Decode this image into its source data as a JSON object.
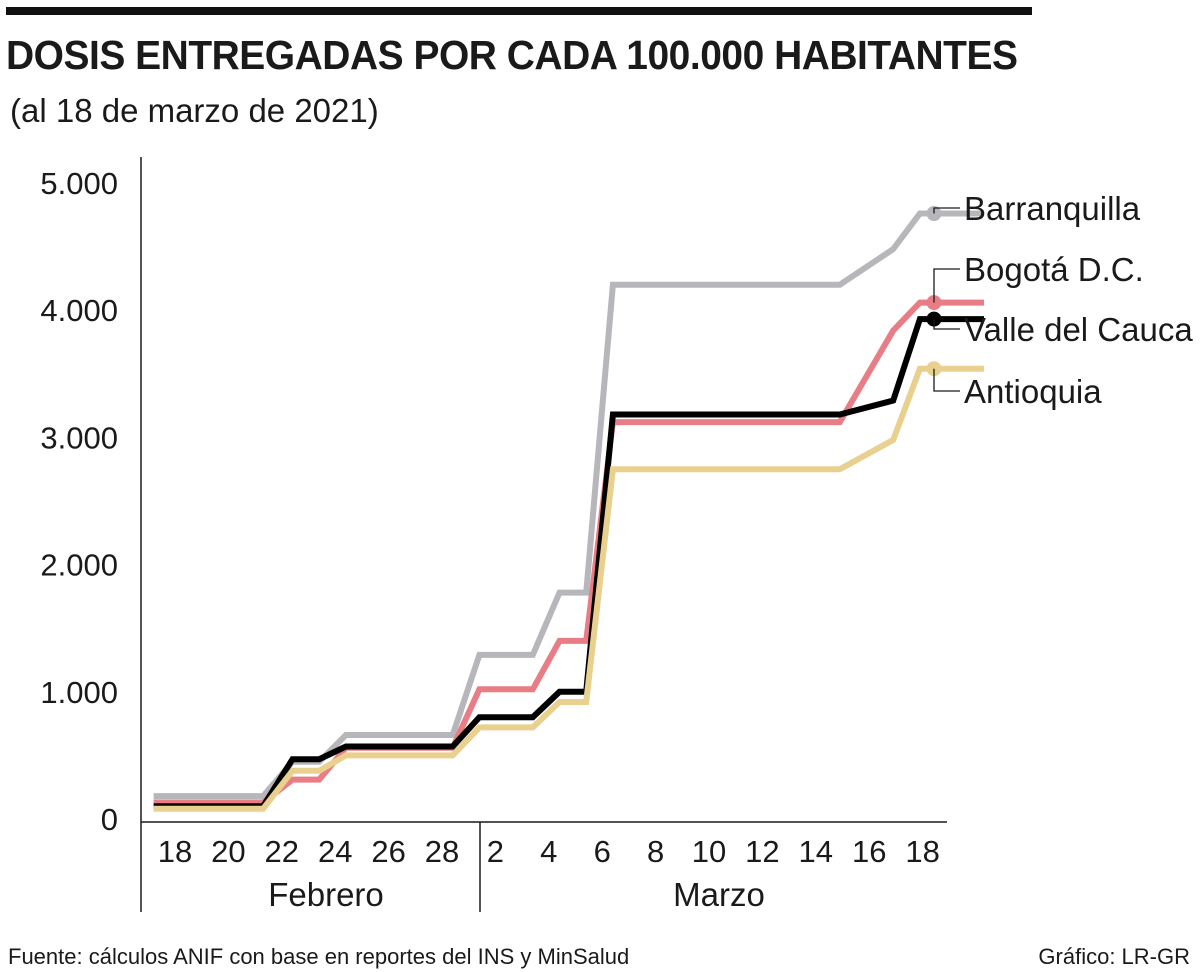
{
  "header": {
    "title": "DOSIS ENTREGADAS POR CADA 100.000 HABITANTES",
    "subtitle": "(al 18 de marzo de 2021)"
  },
  "footer": {
    "source": "Fuente: cálculos ANIF con base en reportes del INS y MinSalud",
    "credit": "Gráfico: LR-GR"
  },
  "chart_data": {
    "type": "line",
    "title": "DOSIS ENTREGADAS POR CADA 100.000 HABITANTES",
    "subtitle": "(al 18 de marzo de 2021)",
    "xlabel": "",
    "ylabel": "",
    "ylim": [
      0,
      5000
    ],
    "y_ticks": [
      0,
      1000,
      2000,
      3000,
      4000,
      5000
    ],
    "y_tick_labels": [
      "0",
      "1.000",
      "2.000",
      "3.000",
      "4.000",
      "5.000"
    ],
    "x_tick_labels": [
      {
        "label": "18",
        "day": 0
      },
      {
        "label": "20",
        "day": 2
      },
      {
        "label": "22",
        "day": 4
      },
      {
        "label": "24",
        "day": 6
      },
      {
        "label": "26",
        "day": 8
      },
      {
        "label": "28",
        "day": 10
      },
      {
        "label": "2",
        "day": 12
      },
      {
        "label": "4",
        "day": 14
      },
      {
        "label": "6",
        "day": 16
      },
      {
        "label": "8",
        "day": 18
      },
      {
        "label": "10",
        "day": 20
      },
      {
        "label": "12",
        "day": 22
      },
      {
        "label": "14",
        "day": 24
      },
      {
        "label": "16",
        "day": 26
      },
      {
        "label": "18",
        "day": 28
      }
    ],
    "month_labels": [
      {
        "label": "Febrero",
        "start_day": -0.6,
        "end_day": 11.1
      },
      {
        "label": "Marzo",
        "start_day": 11.1,
        "end_day": 28.5
      }
    ],
    "x_day_range": [
      -0.6,
      29.0
    ],
    "series": [
      {
        "name": "Barranquilla",
        "color": "#b7b6bb",
        "points": [
          [
            -0.8,
            180
          ],
          [
            3.3,
            180
          ],
          [
            4.4,
            450
          ],
          [
            5.4,
            450
          ],
          [
            6.4,
            660
          ],
          [
            10.4,
            660
          ],
          [
            11.4,
            1290
          ],
          [
            13.4,
            1290
          ],
          [
            14.4,
            1780
          ],
          [
            15.4,
            1780
          ],
          [
            16.4,
            4200
          ],
          [
            24.9,
            4200
          ],
          [
            26.9,
            4480
          ],
          [
            27.9,
            4760
          ],
          [
            30.3,
            4760
          ]
        ]
      },
      {
        "name": "Bogotá D.C.",
        "color": "#e87d85",
        "points": [
          [
            -0.8,
            130
          ],
          [
            3.3,
            130
          ],
          [
            4.4,
            310
          ],
          [
            5.4,
            310
          ],
          [
            6.4,
            560
          ],
          [
            10.4,
            560
          ],
          [
            11.4,
            1020
          ],
          [
            13.4,
            1020
          ],
          [
            14.4,
            1400
          ],
          [
            15.4,
            1400
          ],
          [
            16.4,
            3120
          ],
          [
            24.9,
            3120
          ],
          [
            26.9,
            3840
          ],
          [
            27.9,
            4060
          ],
          [
            30.3,
            4060
          ]
        ]
      },
      {
        "name": "Valle del Cauca",
        "color": "#000000",
        "points": [
          [
            -0.8,
            100
          ],
          [
            3.3,
            100
          ],
          [
            4.4,
            470
          ],
          [
            5.4,
            470
          ],
          [
            6.4,
            570
          ],
          [
            10.4,
            570
          ],
          [
            11.4,
            800
          ],
          [
            13.4,
            800
          ],
          [
            14.4,
            1000
          ],
          [
            15.4,
            1000
          ],
          [
            16.4,
            3180
          ],
          [
            24.9,
            3180
          ],
          [
            26.9,
            3290
          ],
          [
            27.9,
            3930
          ],
          [
            30.3,
            3930
          ]
        ]
      },
      {
        "name": "Antioquia",
        "color": "#ead08f",
        "points": [
          [
            -0.8,
            80
          ],
          [
            3.3,
            80
          ],
          [
            4.4,
            380
          ],
          [
            5.4,
            380
          ],
          [
            6.4,
            500
          ],
          [
            10.4,
            500
          ],
          [
            11.4,
            720
          ],
          [
            13.4,
            720
          ],
          [
            14.4,
            920
          ],
          [
            15.4,
            920
          ],
          [
            16.4,
            2750
          ],
          [
            24.9,
            2750
          ],
          [
            26.9,
            2980
          ],
          [
            27.9,
            3540
          ],
          [
            30.3,
            3540
          ]
        ]
      }
    ]
  }
}
